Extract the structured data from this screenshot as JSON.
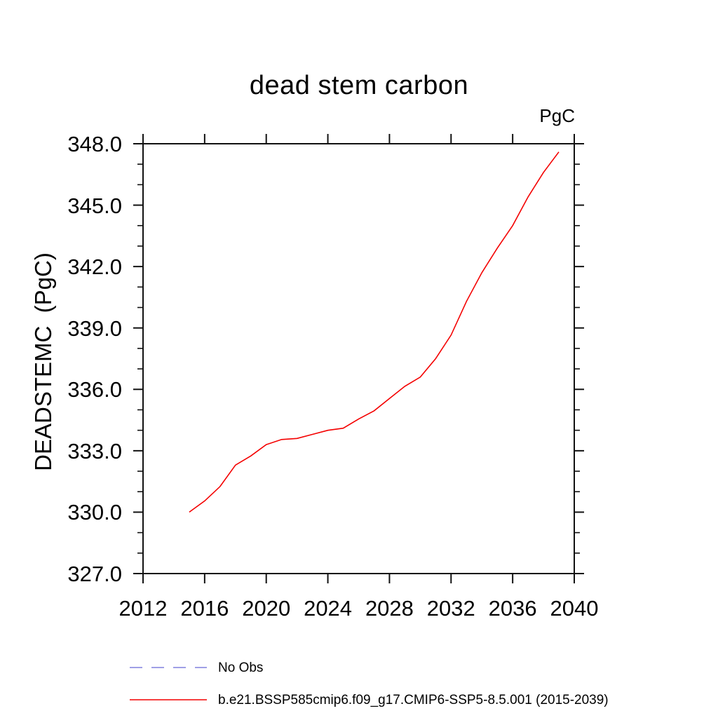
{
  "chart": {
    "title": "dead stem carbon",
    "unit_label": "PgC",
    "y_axis_title": "DEADSTEMC  (PgC)"
  },
  "chart_data": {
    "type": "line",
    "title": "dead stem carbon",
    "xlabel": "",
    "ylabel": "DEADSTEMC (PgC)",
    "unit": "PgC",
    "xlim": [
      2012,
      2040
    ],
    "ylim": [
      327.0,
      348.0
    ],
    "grid": false,
    "x_ticks": [
      2012,
      2016,
      2020,
      2024,
      2028,
      2032,
      2036,
      2040
    ],
    "x_tick_labels": [
      "2012",
      "2016",
      "2020",
      "2024",
      "2028",
      "2032",
      "2036",
      "2040"
    ],
    "y_ticks": [
      327.0,
      330.0,
      333.0,
      336.0,
      339.0,
      342.0,
      345.0,
      348.0
    ],
    "y_tick_labels": [
      "327.0",
      "330.0",
      "333.0",
      "336.0",
      "339.0",
      "342.0",
      "345.0",
      "348.0"
    ],
    "y_minor_step": 1.0,
    "axis_color": "#111111",
    "legend_position": "bottom-left",
    "legend": [
      {
        "label": "No Obs",
        "color": "#8080dd",
        "style": "dashed"
      },
      {
        "label": "b.e21.BSSP585cmip6.f09_g17.CMIP6-SSP5-8.5.001 (2015-2039)",
        "color": "#f40000",
        "style": "solid"
      }
    ],
    "series": [
      {
        "name": "b.e21.BSSP585cmip6.f09_g17.CMIP6-SSP5-8.5.001 (2015-2039)",
        "color": "#f40000",
        "style": "solid",
        "x": [
          2015,
          2016,
          2017,
          2018,
          2019,
          2020,
          2021,
          2022,
          2023,
          2024,
          2025,
          2026,
          2027,
          2028,
          2029,
          2030,
          2031,
          2032,
          2033,
          2034,
          2035,
          2036,
          2037,
          2038,
          2039
        ],
        "values": [
          330.0,
          330.55,
          331.25,
          332.3,
          332.75,
          333.3,
          333.55,
          333.6,
          333.8,
          334.0,
          334.1,
          334.55,
          334.95,
          335.55,
          336.15,
          336.6,
          337.5,
          338.65,
          340.3,
          341.7,
          342.9,
          344.0,
          345.4,
          346.6,
          347.6
        ]
      },
      {
        "name": "No Obs",
        "color": "#8080dd",
        "style": "dashed",
        "x": [],
        "values": []
      }
    ]
  }
}
